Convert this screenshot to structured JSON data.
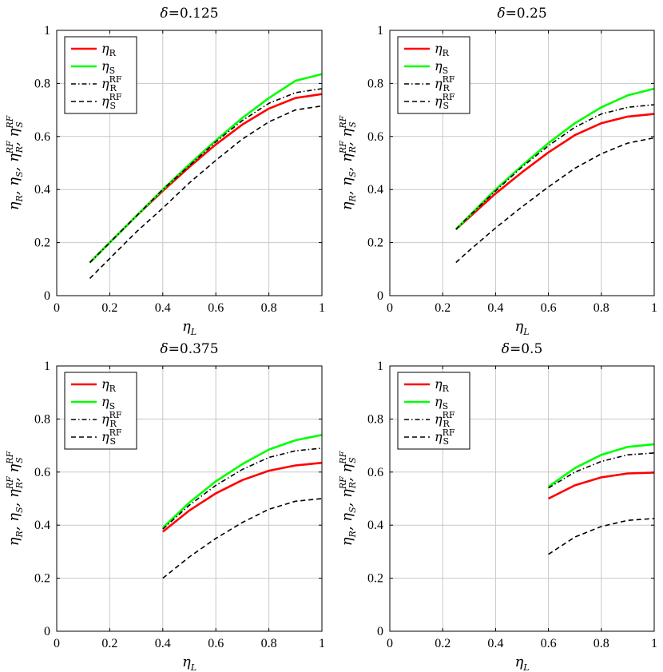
{
  "chart_data": [
    {
      "type": "line",
      "title": "δ=0.125",
      "xlabel": "η_L",
      "ylabel": "η_R, η_S, η_R^RF, η_S^RF",
      "xlim": [
        0,
        1
      ],
      "ylim": [
        0,
        1
      ],
      "xticks": [
        "0",
        "0.2",
        "0.4",
        "0.6",
        "0.8",
        "1"
      ],
      "yticks": [
        "0",
        "0.2",
        "0.4",
        "0.6",
        "0.8",
        "1"
      ],
      "grid": true,
      "legend_position": "top-left",
      "x": [
        0.125,
        0.2,
        0.3,
        0.4,
        0.5,
        0.6,
        0.7,
        0.8,
        0.9,
        1.0
      ],
      "series": [
        {
          "name": "η_R",
          "color": "#ff0000",
          "style": "solid",
          "values": [
            0.125,
            0.2,
            0.3,
            0.395,
            0.485,
            0.57,
            0.645,
            0.705,
            0.745,
            0.76
          ]
        },
        {
          "name": "η_S",
          "color": "#00ff00",
          "style": "solid",
          "values": [
            0.125,
            0.2,
            0.3,
            0.4,
            0.495,
            0.585,
            0.67,
            0.745,
            0.81,
            0.835
          ]
        },
        {
          "name": "η_R^RF",
          "color": "#000000",
          "style": "dashdot",
          "values": [
            0.125,
            0.2,
            0.3,
            0.4,
            0.49,
            0.58,
            0.66,
            0.725,
            0.765,
            0.78
          ]
        },
        {
          "name": "η_S^RF",
          "color": "#000000",
          "style": "dashed",
          "values": [
            0.065,
            0.14,
            0.24,
            0.33,
            0.425,
            0.51,
            0.59,
            0.655,
            0.7,
            0.715
          ]
        }
      ]
    },
    {
      "type": "line",
      "title": "δ=0.25",
      "xlabel": "η_L",
      "ylabel": "η_R, η_S, η_R^RF, η_S^RF",
      "xlim": [
        0,
        1
      ],
      "ylim": [
        0,
        1
      ],
      "xticks": [
        "0",
        "0.2",
        "0.4",
        "0.6",
        "0.8",
        "1"
      ],
      "yticks": [
        "0",
        "0.2",
        "0.4",
        "0.6",
        "0.8",
        "1"
      ],
      "grid": true,
      "legend_position": "top-left",
      "x": [
        0.25,
        0.3,
        0.4,
        0.5,
        0.6,
        0.7,
        0.8,
        0.9,
        1.0
      ],
      "series": [
        {
          "name": "η_R",
          "color": "#ff0000",
          "style": "solid",
          "values": [
            0.25,
            0.295,
            0.385,
            0.465,
            0.54,
            0.605,
            0.65,
            0.675,
            0.685
          ]
        },
        {
          "name": "η_S",
          "color": "#00ff00",
          "style": "solid",
          "values": [
            0.25,
            0.3,
            0.4,
            0.49,
            0.575,
            0.65,
            0.71,
            0.755,
            0.78
          ]
        },
        {
          "name": "η_R^RF",
          "color": "#000000",
          "style": "dashdot",
          "values": [
            0.25,
            0.3,
            0.395,
            0.485,
            0.565,
            0.635,
            0.685,
            0.71,
            0.72
          ]
        },
        {
          "name": "η_S^RF",
          "color": "#000000",
          "style": "dashed",
          "values": [
            0.125,
            0.17,
            0.255,
            0.335,
            0.41,
            0.48,
            0.535,
            0.575,
            0.595
          ]
        }
      ]
    },
    {
      "type": "line",
      "title": "δ=0.375",
      "xlabel": "η_L",
      "ylabel": "η_R, η_S, η_R^RF, η_S^RF",
      "xlim": [
        0,
        1
      ],
      "ylim": [
        0,
        1
      ],
      "xticks": [
        "0",
        "0.2",
        "0.4",
        "0.6",
        "0.8",
        "1"
      ],
      "yticks": [
        "0",
        "0.2",
        "0.4",
        "0.6",
        "0.8",
        "1"
      ],
      "grid": true,
      "legend_position": "top-left",
      "x": [
        0.4,
        0.5,
        0.6,
        0.7,
        0.8,
        0.9,
        1.0
      ],
      "series": [
        {
          "name": "η_R",
          "color": "#ff0000",
          "style": "solid",
          "values": [
            0.375,
            0.455,
            0.52,
            0.57,
            0.605,
            0.625,
            0.635
          ]
        },
        {
          "name": "η_S",
          "color": "#00ff00",
          "style": "solid",
          "values": [
            0.39,
            0.485,
            0.565,
            0.63,
            0.685,
            0.72,
            0.74
          ]
        },
        {
          "name": "η_R^RF",
          "color": "#000000",
          "style": "dashdot",
          "values": [
            0.385,
            0.475,
            0.55,
            0.61,
            0.655,
            0.68,
            0.69
          ]
        },
        {
          "name": "η_S^RF",
          "color": "#000000",
          "style": "dashed",
          "values": [
            0.2,
            0.28,
            0.35,
            0.41,
            0.46,
            0.49,
            0.5
          ]
        }
      ]
    },
    {
      "type": "line",
      "title": "δ=0.5",
      "xlabel": "η_L",
      "ylabel": "η_R, η_S, η_R^RF, η_S^RF",
      "xlim": [
        0,
        1
      ],
      "ylim": [
        0,
        1
      ],
      "xticks": [
        "0",
        "0.2",
        "0.4",
        "0.6",
        "0.8",
        "1"
      ],
      "yticks": [
        "0",
        "0.2",
        "0.4",
        "0.6",
        "0.8",
        "1"
      ],
      "grid": true,
      "legend_position": "top-left",
      "x": [
        0.6,
        0.7,
        0.8,
        0.9,
        1.0
      ],
      "series": [
        {
          "name": "η_R",
          "color": "#ff0000",
          "style": "solid",
          "values": [
            0.5,
            0.55,
            0.58,
            0.595,
            0.598
          ]
        },
        {
          "name": "η_S",
          "color": "#00ff00",
          "style": "solid",
          "values": [
            0.545,
            0.615,
            0.665,
            0.695,
            0.705
          ]
        },
        {
          "name": "η_R^RF",
          "color": "#000000",
          "style": "dashdot",
          "values": [
            0.54,
            0.6,
            0.64,
            0.665,
            0.672
          ]
        },
        {
          "name": "η_S^RF",
          "color": "#000000",
          "style": "dashed",
          "values": [
            0.29,
            0.355,
            0.395,
            0.418,
            0.425
          ]
        }
      ]
    }
  ]
}
